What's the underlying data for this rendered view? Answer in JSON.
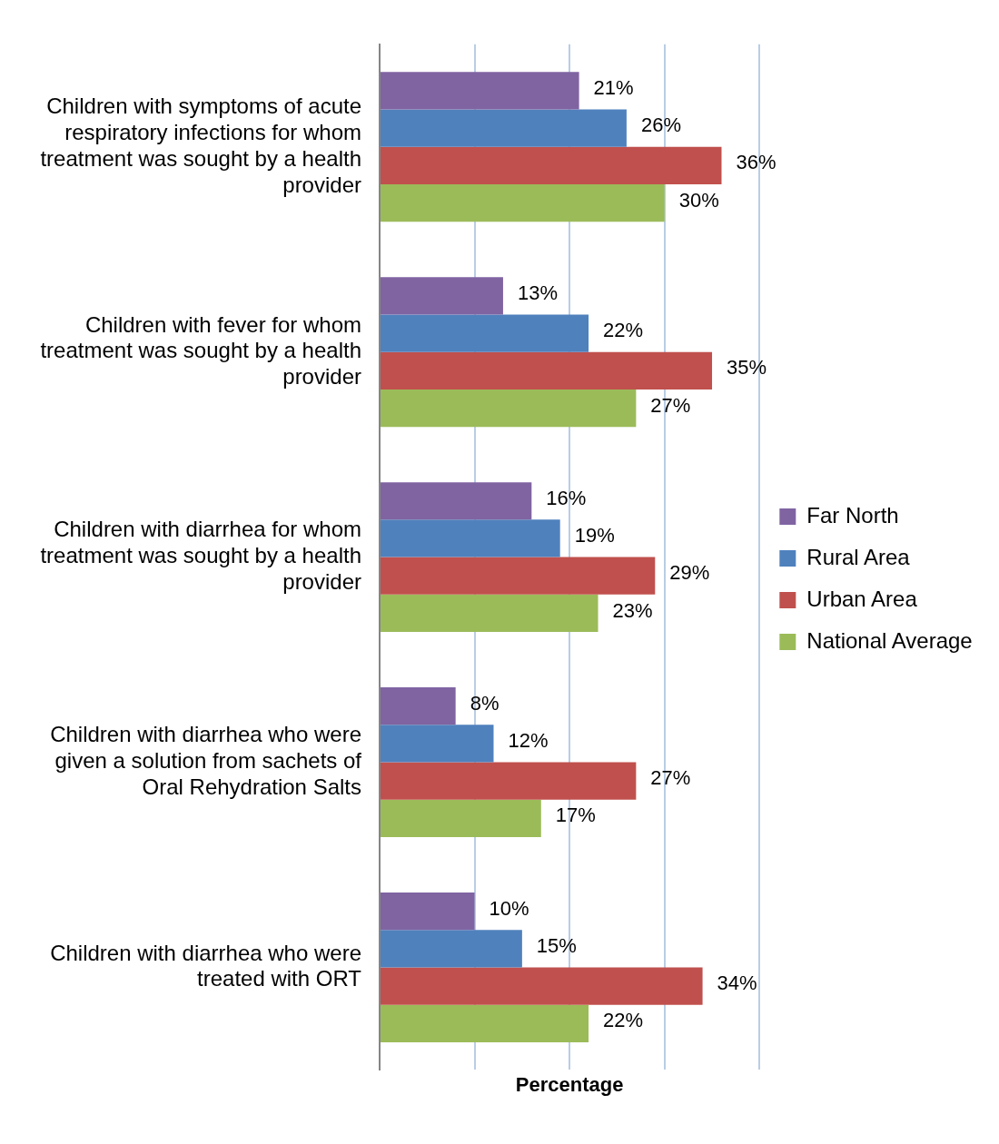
{
  "chart_data": {
    "type": "bar",
    "orientation": "horizontal",
    "xlabel": "Percentage",
    "categories": [
      "Children with symptoms of acute respiratory infections for whom treatment was sought by a health provider",
      "Children with fever for whom treatment was sought by a health provider",
      "Children with diarrhea for whom treatment was sought by a health provider",
      "Children with diarrhea who were given a solution from sachets of Oral Rehydration Salts",
      "Children with diarrhea who were treated with ORT"
    ],
    "series": [
      {
        "name": "Far North",
        "color": "#8064a2",
        "values": [
          21,
          13,
          16,
          8,
          10
        ],
        "value_labels": [
          "21%",
          "13%",
          "16%",
          "8%",
          "10%"
        ]
      },
      {
        "name": "Rural Area",
        "color": "#4f81bd",
        "values": [
          26,
          22,
          19,
          12,
          15
        ],
        "value_labels": [
          "26%",
          "22%",
          "19%",
          "12%",
          "15%"
        ]
      },
      {
        "name": "Urban Area",
        "color": "#c0504d",
        "values": [
          36,
          35,
          29,
          27,
          34
        ],
        "value_labels": [
          "36%",
          "35%",
          "29%",
          "27%",
          "34%"
        ]
      },
      {
        "name": "National Average",
        "color": "#9bbb59",
        "values": [
          30,
          27,
          23,
          17,
          22
        ],
        "value_labels": [
          "30%",
          "27%",
          "23%",
          "17%",
          "22%"
        ]
      }
    ],
    "xlim": [
      0,
      40
    ],
    "xticks": [
      {
        "value": 0,
        "label": null
      },
      {
        "value": 10,
        "label": null
      },
      {
        "value": 20,
        "label": null
      },
      {
        "value": 30,
        "label": null
      },
      {
        "value": 40,
        "label": null
      }
    ],
    "tick_labels": "y",
    "grid": "x",
    "legend": "right"
  }
}
